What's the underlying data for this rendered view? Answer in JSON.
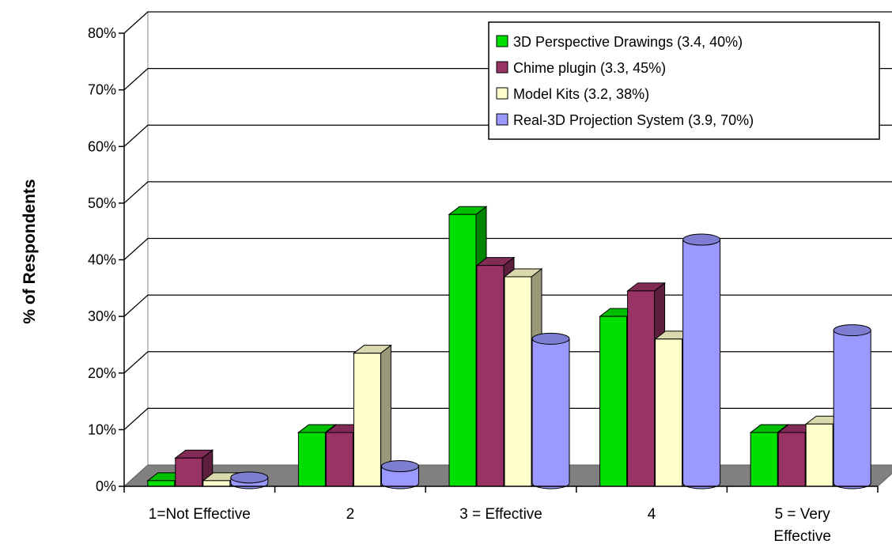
{
  "chart_data": {
    "type": "bar",
    "title": "",
    "xlabel": "",
    "ylabel": "% of Respondents",
    "ylim": [
      0,
      80
    ],
    "yticks": [
      0,
      10,
      20,
      30,
      40,
      50,
      60,
      70,
      80
    ],
    "ytick_labels": [
      "0%",
      "10%",
      "20%",
      "30%",
      "40%",
      "50%",
      "60%",
      "70%",
      "80%"
    ],
    "grid": true,
    "legend_position": "top-right",
    "categories": [
      "1=Not Effective",
      "2",
      "3 = Effective",
      "4",
      "5 = Very Effective"
    ],
    "category_lines": [
      [
        "1=Not Effective"
      ],
      [
        "2"
      ],
      [
        "3 = Effective"
      ],
      [
        "4"
      ],
      [
        "5 = Very",
        "Effective"
      ]
    ],
    "series": [
      {
        "name": "3D Perspective Drawings (3.4, 40%)",
        "shape": "box",
        "color": "#00e000",
        "values": [
          1,
          9.5,
          48,
          30,
          9.5
        ]
      },
      {
        "name": "Chime plugin (3.3, 45%)",
        "shape": "box",
        "color": "#993366",
        "values": [
          5,
          9.5,
          39,
          34.5,
          9.5
        ]
      },
      {
        "name": "Model Kits (3.2, 38%)",
        "shape": "box",
        "color": "#ffffcc",
        "values": [
          1,
          23.5,
          37,
          26,
          11
        ]
      },
      {
        "name": "Real-3D Projection System (3.9, 70%)",
        "shape": "cylinder",
        "color": "#9999ff",
        "values": [
          1,
          3,
          25.5,
          43,
          27
        ]
      }
    ]
  }
}
